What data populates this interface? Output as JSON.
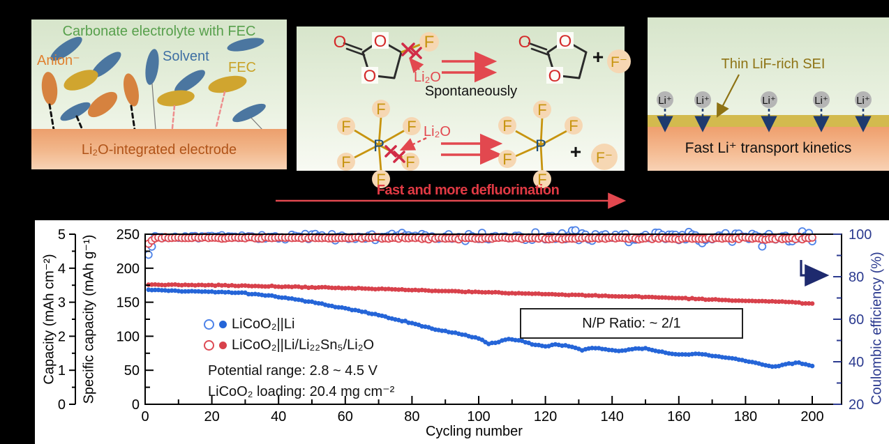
{
  "panel_a": {
    "title": "Carbonate electrolyte with FEC",
    "anion_label": "Anion⁻",
    "solvent_label": "Solvent",
    "fec_label": "FEC",
    "electrode_label": "Li₂O-integrated electrode",
    "colors": {
      "title": "#57a04c",
      "anion": "#e0802f",
      "solvent": "#3e6fa3",
      "fec": "#c9a227",
      "electrode_text": "#b05318"
    }
  },
  "panel_b": {
    "atoms": {
      "o": "O",
      "f": "F",
      "p": "P",
      "f_minus": "F⁻",
      "plus": "+"
    },
    "li2o": "Li₂O",
    "spontaneously": "Spontaneously",
    "caption": "Fast and more defluorination",
    "colors": {
      "red": "#e2484f",
      "cross": "#d12b47",
      "atom_o": "#d42b2b",
      "atom_f": "#c7940f",
      "atom_p": "#1f4e79",
      "peach": "#f6d7b3",
      "caption": "#e13a44"
    }
  },
  "panel_c": {
    "sei_label": "Thin LiF-rich SEI",
    "li_ion": "Li⁺",
    "kinetics_label": "Fast Li⁺ transport kinetics",
    "colors": {
      "sei_band": "#d3ba4e",
      "sei_text": "#8e7315",
      "ion_arrow": "#1e3a6e",
      "ion_fill": "#b5b5b5"
    }
  },
  "chart": {
    "xlabel": "Cycling number",
    "ylabel_capacity": "Capacity (mAh cm⁻²)",
    "ylabel_specific": "Specific capacity (mAh g⁻¹)",
    "ylabel_efficiency": "Coulombic efficiency (%)",
    "legend": [
      {
        "label": "LiCoO₂||Li",
        "color": "#2565d8"
      },
      {
        "label": "LiCoO₂||Li/Li₂₂Sn₅/Li₂O",
        "color": "#d8414b"
      }
    ],
    "note_potential": "Potential range: 2.8 ~ 4.5 V",
    "note_loading": "LiCoO₂ loading: 20.4 mg cm⁻²",
    "np_ratio": "N/P Ratio: ~ 2/1",
    "efficiency_color": "#2b3a8f"
  },
  "chart_data": {
    "type": "scatter",
    "title": "",
    "xlabel": "Cycling number",
    "x_range": [
      0,
      200
    ],
    "x_tick_step": 20,
    "x_minor_step": 10,
    "left_axis": {
      "label": "Specific capacity (mAh g⁻¹)",
      "range": [
        0,
        250
      ],
      "tick_step": 50,
      "minor_step": 25
    },
    "outer_axis": {
      "label": "Capacity (mAh cm⁻²)",
      "range": [
        0,
        5
      ],
      "tick_step": 1,
      "minor_step": 0.5
    },
    "right_axis": {
      "label": "Coulombic efficiency (%)",
      "range": [
        20,
        100
      ],
      "tick_step": 20,
      "minor_step": 10
    },
    "grid": false,
    "legend_position": "center-left",
    "annotations": [
      "N/P Ratio: ~ 2/1",
      "Potential range: 2.8 ~ 4.5 V",
      "LiCoO₂ loading: 20.4 mg cm⁻²"
    ],
    "series": [
      {
        "name": "LiCoO₂||Li — specific capacity (mAh g⁻¹)",
        "axis": "left",
        "marker": "filled",
        "color": "#2565d8",
        "jitter": 1.3,
        "anchors": [
          [
            1,
            168
          ],
          [
            10,
            166.5
          ],
          [
            20,
            165.5
          ],
          [
            30,
            163.5
          ],
          [
            40,
            158
          ],
          [
            50,
            150
          ],
          [
            60,
            141
          ],
          [
            70,
            131
          ],
          [
            80,
            119
          ],
          [
            88,
            109
          ],
          [
            95,
            103
          ],
          [
            100,
            97
          ],
          [
            103,
            89
          ],
          [
            106,
            91
          ],
          [
            109,
            96
          ],
          [
            113,
            93
          ],
          [
            117,
            87
          ],
          [
            120,
            85
          ],
          [
            123,
            88
          ],
          [
            127,
            86
          ],
          [
            131,
            80
          ],
          [
            134,
            83
          ],
          [
            138,
            81
          ],
          [
            142,
            78
          ],
          [
            146,
            81
          ],
          [
            150,
            82
          ],
          [
            154,
            78
          ],
          [
            158,
            74
          ],
          [
            162,
            73
          ],
          [
            166,
            74
          ],
          [
            170,
            71
          ],
          [
            174,
            69
          ],
          [
            178,
            66
          ],
          [
            182,
            62
          ],
          [
            186,
            57
          ],
          [
            189,
            55
          ],
          [
            193,
            60
          ],
          [
            196,
            61
          ],
          [
            200,
            56
          ]
        ]
      },
      {
        "name": "LiCoO₂||Li/Li₂₂Sn₅/Li₂O — specific capacity (mAh g⁻¹)",
        "axis": "left",
        "marker": "filled",
        "color": "#d8414b",
        "jitter": 1.1,
        "anchors": [
          [
            1,
            176
          ],
          [
            20,
            175
          ],
          [
            40,
            173
          ],
          [
            60,
            171
          ],
          [
            80,
            168
          ],
          [
            100,
            165
          ],
          [
            120,
            162
          ],
          [
            140,
            159
          ],
          [
            155,
            157
          ],
          [
            170,
            154
          ],
          [
            180,
            152
          ],
          [
            190,
            151
          ],
          [
            200,
            148
          ]
        ]
      },
      {
        "name": "LiCoO₂||Li — coulombic efficiency (%)",
        "axis": "right",
        "marker": "open",
        "color": "#4d82e8",
        "noise": [
          0.5,
          2.6
        ],
        "anchors": [
          [
            1,
            90
          ],
          [
            3,
            98.8
          ],
          [
            60,
            98.8
          ],
          [
            120,
            98.7
          ],
          [
            200,
            98.6
          ]
        ]
      },
      {
        "name": "LiCoO₂||Li/Li₂₂Sn₅/Li₂O — coulombic efficiency (%)",
        "axis": "right",
        "marker": "open",
        "color": "#dd4a54",
        "noise": [
          0.25,
          0.55
        ],
        "anchors": [
          [
            1,
            95.5
          ],
          [
            3,
            98.3
          ],
          [
            200,
            98.0
          ]
        ]
      }
    ]
  }
}
